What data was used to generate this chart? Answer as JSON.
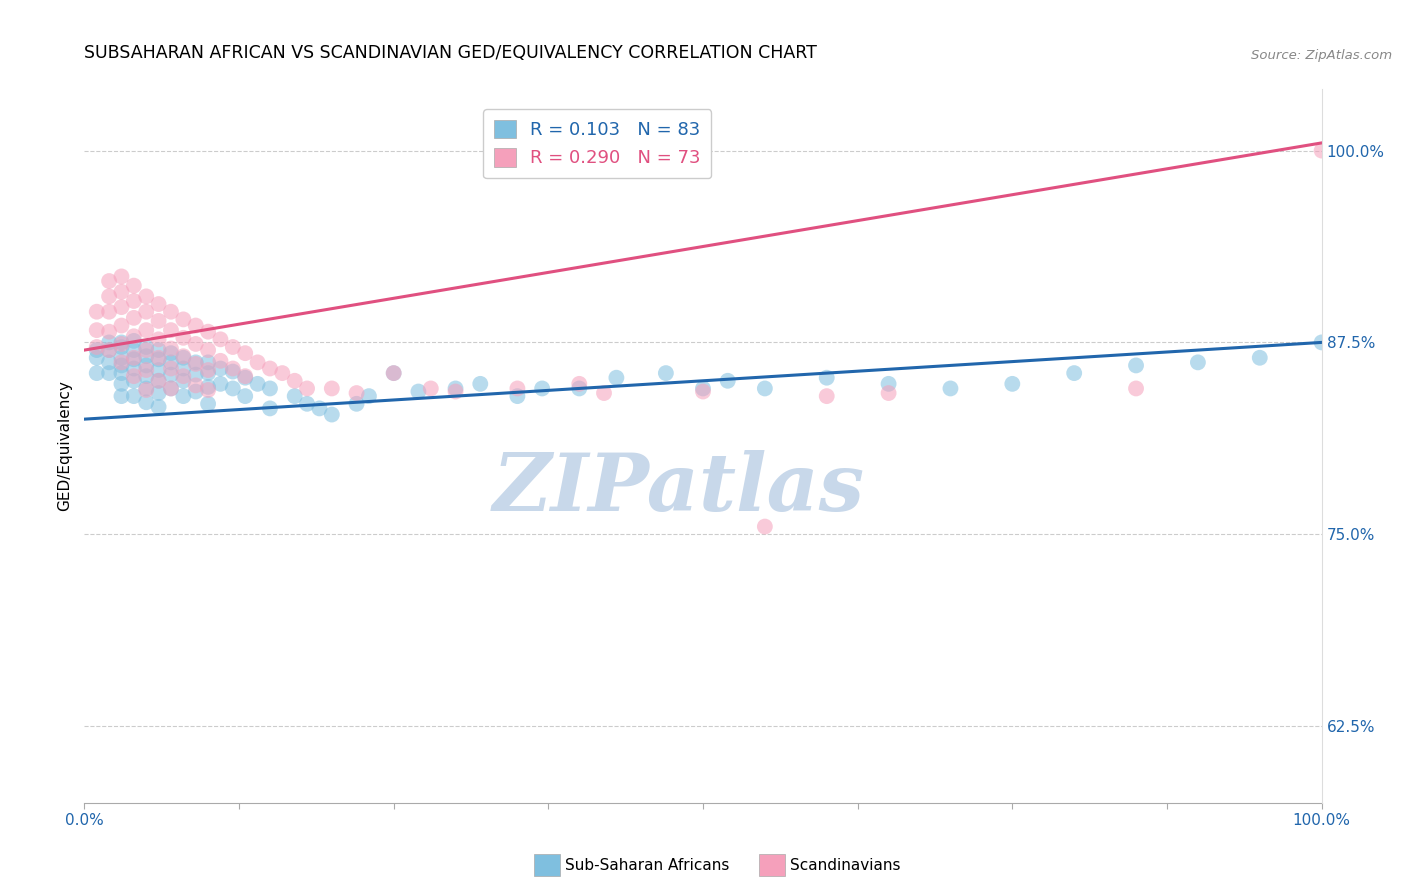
{
  "title": "SUBSAHARAN AFRICAN VS SCANDINAVIAN GED/EQUIVALENCY CORRELATION CHART",
  "source": "Source: ZipAtlas.com",
  "ylabel": "GED/Equivalency",
  "blue_color": "#7fbfdf",
  "pink_color": "#f5a0bb",
  "blue_line_color": "#2166ac",
  "pink_line_color": "#e05080",
  "blue_r": 0.103,
  "blue_n": 83,
  "pink_r": 0.29,
  "pink_n": 73,
  "watermark_color": "#c8d8ea",
  "xlim": [
    0.0,
    1.0
  ],
  "ylim": [
    0.575,
    1.04
  ],
  "yticks": [
    0.625,
    0.75,
    0.875,
    1.0
  ],
  "ytick_labels": [
    "62.5%",
    "75.0%",
    "87.5%",
    "100.0%"
  ],
  "xticks": [
    0.0,
    0.125,
    0.25,
    0.375,
    0.5,
    0.625,
    0.75,
    0.875,
    1.0
  ],
  "xtick_labels": [
    "0.0%",
    "",
    "",
    "",
    "",
    "",
    "",
    "",
    "100.0%"
  ],
  "blue_line_x0": 0.0,
  "blue_line_y0": 0.825,
  "blue_line_x1": 1.0,
  "blue_line_y1": 0.875,
  "pink_line_x0": 0.0,
  "pink_line_y0": 0.87,
  "pink_line_x1": 1.0,
  "pink_line_y1": 1.005,
  "blue_x": [
    0.01,
    0.01,
    0.01,
    0.02,
    0.02,
    0.02,
    0.02,
    0.03,
    0.03,
    0.03,
    0.03,
    0.03,
    0.03,
    0.03,
    0.04,
    0.04,
    0.04,
    0.04,
    0.04,
    0.04,
    0.05,
    0.05,
    0.05,
    0.05,
    0.05,
    0.05,
    0.06,
    0.06,
    0.06,
    0.06,
    0.06,
    0.06,
    0.07,
    0.07,
    0.07,
    0.07,
    0.08,
    0.08,
    0.08,
    0.08,
    0.09,
    0.09,
    0.09,
    0.1,
    0.1,
    0.1,
    0.1,
    0.11,
    0.11,
    0.12,
    0.12,
    0.13,
    0.13,
    0.14,
    0.15,
    0.15,
    0.17,
    0.18,
    0.19,
    0.2,
    0.22,
    0.23,
    0.25,
    0.27,
    0.3,
    0.32,
    0.35,
    0.37,
    0.4,
    0.43,
    0.47,
    0.5,
    0.52,
    0.55,
    0.6,
    0.65,
    0.7,
    0.75,
    0.8,
    0.85,
    0.9,
    0.95,
    1.0
  ],
  "blue_y": [
    0.87,
    0.865,
    0.855,
    0.875,
    0.87,
    0.862,
    0.855,
    0.875,
    0.872,
    0.865,
    0.86,
    0.855,
    0.848,
    0.84,
    0.876,
    0.87,
    0.864,
    0.858,
    0.85,
    0.84,
    0.872,
    0.866,
    0.86,
    0.853,
    0.845,
    0.836,
    0.87,
    0.864,
    0.857,
    0.85,
    0.842,
    0.833,
    0.868,
    0.862,
    0.854,
    0.845,
    0.865,
    0.858,
    0.85,
    0.84,
    0.862,
    0.854,
    0.843,
    0.862,
    0.855,
    0.846,
    0.835,
    0.858,
    0.848,
    0.856,
    0.845,
    0.852,
    0.84,
    0.848,
    0.845,
    0.832,
    0.84,
    0.835,
    0.832,
    0.828,
    0.835,
    0.84,
    0.855,
    0.843,
    0.845,
    0.848,
    0.84,
    0.845,
    0.845,
    0.852,
    0.855,
    0.845,
    0.85,
    0.845,
    0.852,
    0.848,
    0.845,
    0.848,
    0.855,
    0.86,
    0.862,
    0.865,
    0.875
  ],
  "pink_x": [
    0.01,
    0.01,
    0.01,
    0.02,
    0.02,
    0.02,
    0.02,
    0.02,
    0.03,
    0.03,
    0.03,
    0.03,
    0.03,
    0.03,
    0.04,
    0.04,
    0.04,
    0.04,
    0.04,
    0.04,
    0.05,
    0.05,
    0.05,
    0.05,
    0.05,
    0.05,
    0.06,
    0.06,
    0.06,
    0.06,
    0.06,
    0.07,
    0.07,
    0.07,
    0.07,
    0.07,
    0.08,
    0.08,
    0.08,
    0.08,
    0.09,
    0.09,
    0.09,
    0.09,
    0.1,
    0.1,
    0.1,
    0.1,
    0.11,
    0.11,
    0.12,
    0.12,
    0.13,
    0.13,
    0.14,
    0.15,
    0.16,
    0.17,
    0.18,
    0.2,
    0.22,
    0.25,
    0.28,
    0.3,
    0.35,
    0.4,
    0.42,
    0.5,
    0.55,
    0.6,
    0.65,
    0.85,
    1.0
  ],
  "pink_y": [
    0.895,
    0.883,
    0.872,
    0.915,
    0.905,
    0.895,
    0.882,
    0.87,
    0.918,
    0.908,
    0.898,
    0.886,
    0.874,
    0.862,
    0.912,
    0.902,
    0.891,
    0.879,
    0.865,
    0.853,
    0.905,
    0.895,
    0.883,
    0.87,
    0.857,
    0.844,
    0.9,
    0.889,
    0.877,
    0.865,
    0.85,
    0.895,
    0.883,
    0.871,
    0.858,
    0.845,
    0.89,
    0.878,
    0.866,
    0.853,
    0.886,
    0.874,
    0.861,
    0.847,
    0.882,
    0.87,
    0.857,
    0.844,
    0.877,
    0.863,
    0.872,
    0.858,
    0.868,
    0.853,
    0.862,
    0.858,
    0.855,
    0.85,
    0.845,
    0.845,
    0.842,
    0.855,
    0.845,
    0.843,
    0.845,
    0.848,
    0.842,
    0.843,
    0.755,
    0.84,
    0.842,
    0.845,
    1.0
  ]
}
